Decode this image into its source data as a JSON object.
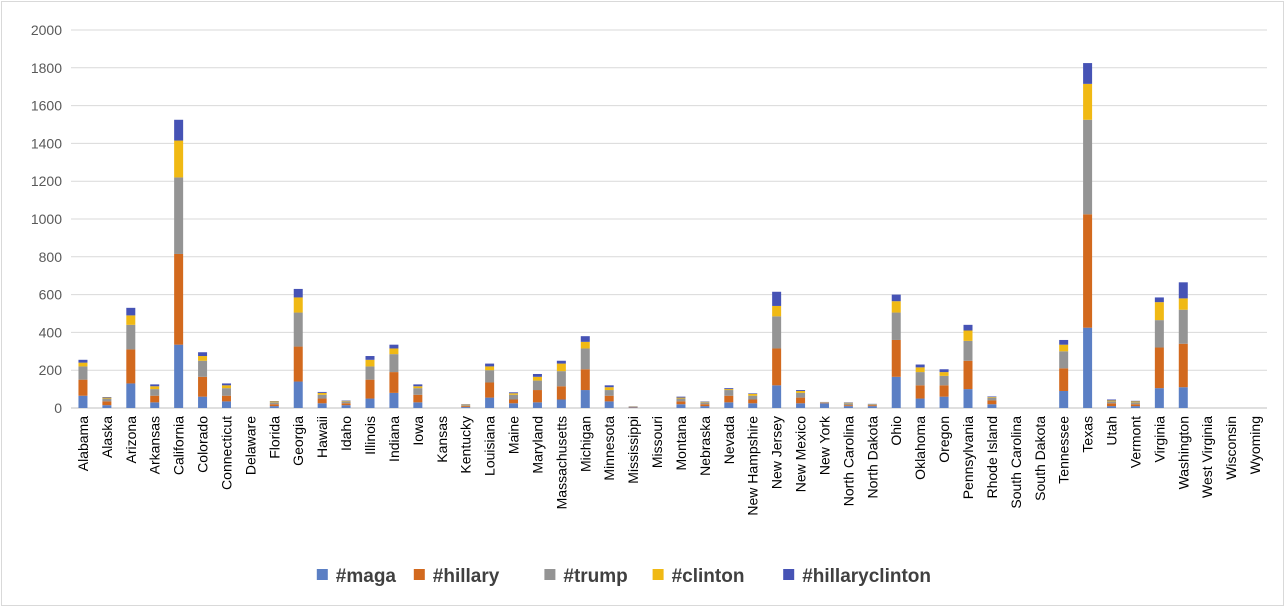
{
  "chart_data": {
    "type": "bar",
    "stacked": true,
    "title": "",
    "xlabel": "",
    "ylabel": "",
    "ylim": [
      0,
      2000
    ],
    "yticks": [
      0,
      200,
      400,
      600,
      800,
      1000,
      1200,
      1400,
      1600,
      1800,
      2000
    ],
    "ytick_labels": [
      "0",
      "200",
      "400",
      "600",
      "800",
      "1000",
      "1200",
      "1400",
      "1600",
      "1800",
      "2000"
    ],
    "grid": true,
    "legend_position": "bottom",
    "categories": [
      "Alabama",
      "Alaska",
      "Arizona",
      "Arkansas",
      "California",
      "Colorado",
      "Connecticut",
      "Delaware",
      "Florida",
      "Georgia",
      "Hawaii",
      "Idaho",
      "Illinois",
      "Indiana",
      "Iowa",
      "Kansas",
      "Kentucky",
      "Louisiana",
      "Maine",
      "Maryland",
      "Massachusetts",
      "Michigan",
      "Minnesota",
      "Mississippi",
      "Missouri",
      "Montana",
      "Nebraska",
      "Nevada",
      "New Hampshire",
      "New Jersey",
      "New Mexico",
      "New York",
      "North Carolina",
      "North Dakota",
      "Ohio",
      "Oklahoma",
      "Oregon",
      "Pennsylvania",
      "Rhode Island",
      "South Carolina",
      "South Dakota",
      "Tennessee",
      "Texas",
      "Utah",
      "Vermont",
      "Virginia",
      "Washington",
      "West Virginia",
      "Wisconsin",
      "Wyoming"
    ],
    "series": [
      {
        "name": "#maga",
        "color": "#5b7fc4",
        "values": [
          65,
          15,
          130,
          30,
          335,
          60,
          35,
          0,
          10,
          140,
          25,
          15,
          50,
          80,
          30,
          0,
          5,
          55,
          25,
          30,
          45,
          95,
          35,
          3,
          0,
          20,
          10,
          30,
          25,
          120,
          25,
          25,
          10,
          10,
          165,
          50,
          60,
          100,
          20,
          0,
          0,
          90,
          425,
          10,
          10,
          105,
          110,
          0,
          0,
          0
        ]
      },
      {
        "name": "#hillary",
        "color": "#d2691e",
        "values": [
          85,
          20,
          180,
          35,
          480,
          105,
          30,
          0,
          10,
          185,
          25,
          10,
          100,
          110,
          40,
          0,
          5,
          80,
          20,
          65,
          70,
          110,
          30,
          2,
          0,
          15,
          10,
          35,
          20,
          195,
          30,
          3,
          5,
          5,
          195,
          70,
          60,
          150,
          20,
          0,
          0,
          120,
          600,
          15,
          10,
          215,
          230,
          0,
          0,
          0
        ]
      },
      {
        "name": "#trump",
        "color": "#949494",
        "values": [
          70,
          15,
          130,
          35,
          405,
          85,
          40,
          0,
          10,
          180,
          20,
          10,
          70,
          95,
          35,
          0,
          5,
          65,
          25,
          50,
          80,
          110,
          30,
          2,
          0,
          15,
          10,
          30,
          20,
          170,
          25,
          2,
          10,
          5,
          145,
          70,
          50,
          105,
          15,
          0,
          0,
          90,
          500,
          10,
          10,
          145,
          180,
          0,
          0,
          0
        ]
      },
      {
        "name": "#clinton",
        "color": "#f0b914",
        "values": [
          20,
          5,
          50,
          15,
          195,
          25,
          15,
          0,
          5,
          80,
          10,
          3,
          35,
          30,
          10,
          0,
          3,
          20,
          8,
          20,
          40,
          35,
          15,
          1,
          0,
          5,
          3,
          5,
          10,
          55,
          10,
          1,
          3,
          1,
          60,
          25,
          20,
          55,
          3,
          0,
          0,
          35,
          190,
          5,
          5,
          95,
          60,
          0,
          0,
          0
        ]
      },
      {
        "name": "#hillaryclinton",
        "color": "#4653b5",
        "values": [
          15,
          3,
          40,
          10,
          110,
          20,
          10,
          0,
          2,
          45,
          5,
          2,
          20,
          20,
          10,
          0,
          2,
          15,
          5,
          15,
          15,
          30,
          10,
          1,
          0,
          5,
          2,
          5,
          3,
          75,
          5,
          1,
          2,
          1,
          35,
          15,
          15,
          30,
          3,
          0,
          0,
          25,
          110,
          5,
          3,
          25,
          85,
          0,
          0,
          0
        ]
      }
    ]
  }
}
